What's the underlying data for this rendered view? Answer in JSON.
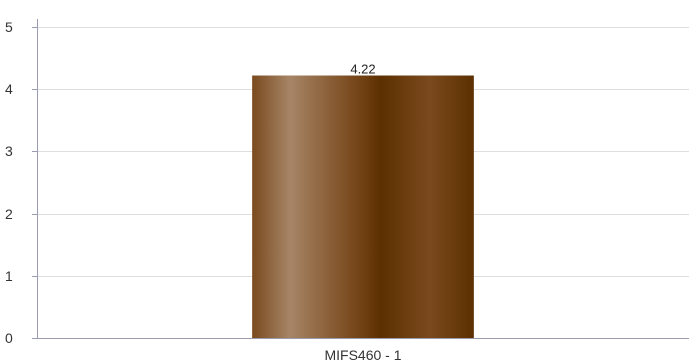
{
  "chart_data": {
    "type": "bar",
    "categories": [
      "MIFS460 - 1"
    ],
    "values": [
      4.22
    ],
    "data_labels": [
      "4.22"
    ],
    "y_ticks": [
      "0",
      "1",
      "2",
      "3",
      "4",
      "5"
    ],
    "ylim": [
      0,
      5
    ],
    "grid": true,
    "legend": "none",
    "title": "",
    "xlabel": "",
    "ylabel": ""
  },
  "colors": {
    "bar_dark": "#5c3000",
    "bar_mid": "#7a4a1e",
    "bar_light": "#a68566",
    "gridline": "#dedede",
    "axis": "#9a9ab0",
    "text": "#333333"
  }
}
